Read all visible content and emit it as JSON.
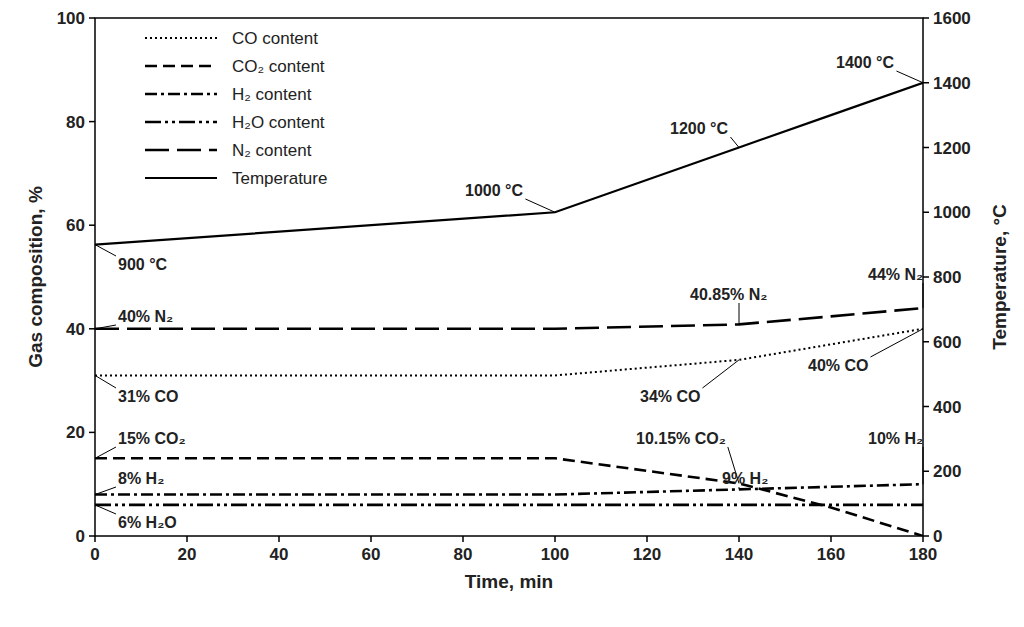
{
  "chart_data": {
    "type": "line",
    "x_label": "Time, min",
    "y_label": "Gas composition, %",
    "y2_label": "Temperature, °C",
    "x": [
      0,
      100,
      140,
      160,
      180
    ],
    "xlim": [
      0,
      180
    ],
    "xticks": [
      0,
      20,
      40,
      60,
      80,
      100,
      120,
      140,
      160,
      180
    ],
    "ylim": [
      0,
      100
    ],
    "yticks": [
      0,
      20,
      40,
      60,
      80,
      100
    ],
    "y2lim": [
      0,
      1600
    ],
    "y2ticks": [
      0,
      200,
      400,
      600,
      800,
      1000,
      1200,
      1400,
      1600
    ],
    "grid": false,
    "legend": "upper left",
    "series": [
      {
        "name": "CO content",
        "color": "#000000",
        "line_style": "dotted",
        "values": [
          31,
          31,
          34,
          37,
          40
        ]
      },
      {
        "name": "CO₂ content",
        "color": "#000000",
        "line_style": "dashed",
        "values": [
          15,
          15,
          10.15,
          5.5,
          0
        ]
      },
      {
        "name": "H₂ content",
        "color": "#000000",
        "line_style": "dash_dot",
        "values": [
          8,
          8,
          9,
          9.5,
          10
        ]
      },
      {
        "name": "H₂O content",
        "color": "#000000",
        "line_style": "dash_dot_dot",
        "values": [
          6,
          6,
          6,
          6,
          6
        ]
      },
      {
        "name": "N₂ content",
        "color": "#000000",
        "line_style": "long_dash",
        "values": [
          40,
          40,
          40.85,
          42.4,
          44
        ]
      },
      {
        "name": "Temperature",
        "color": "#000000",
        "line_style": "solid",
        "axis": "y2",
        "values": [
          900,
          1000,
          1200,
          1300,
          1400
        ]
      }
    ],
    "annotations": [
      {
        "text": "900 °C",
        "x": 0,
        "y": 900,
        "axis": "y2"
      },
      {
        "text": "1000 °C",
        "x": 100,
        "y": 1000,
        "axis": "y2"
      },
      {
        "text": "1200 °C",
        "x": 140,
        "y": 1200,
        "axis": "y2"
      },
      {
        "text": "1400 °C",
        "x": 180,
        "y": 1400,
        "axis": "y2"
      },
      {
        "text": "40% N₂",
        "x": 0,
        "y": 40
      },
      {
        "text": "40.85% N₂",
        "x": 140,
        "y": 40.85
      },
      {
        "text": "44% N₂",
        "x": 180,
        "y": 44
      },
      {
        "text": "31% CO",
        "x": 0,
        "y": 31
      },
      {
        "text": "34% CO",
        "x": 140,
        "y": 34
      },
      {
        "text": "40% CO",
        "x": 180,
        "y": 40
      },
      {
        "text": "15% CO₂",
        "x": 0,
        "y": 15
      },
      {
        "text": "10.15% CO₂",
        "x": 140,
        "y": 10.15
      },
      {
        "text": "8% H₂",
        "x": 0,
        "y": 8
      },
      {
        "text": "9% H₂",
        "x": 140,
        "y": 9
      },
      {
        "text": "10% H₂",
        "x": 180,
        "y": 10
      },
      {
        "text": "6% H₂O",
        "x": 0,
        "y": 6
      }
    ]
  }
}
